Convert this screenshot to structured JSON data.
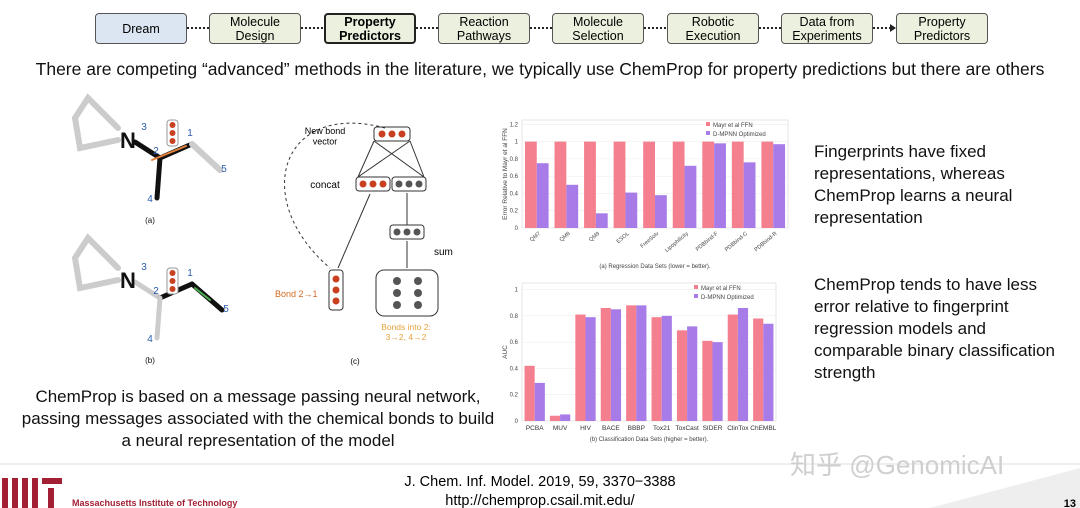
{
  "workflow": [
    "Dream",
    "Molecule\nDesign",
    "Property\nPredictors",
    "Reaction\nPathways",
    "Molecule\nSelection",
    "Robotic\nExecution",
    "Data from\nExperiments",
    "Property\nPredictors"
  ],
  "subtitle": "There are competing “advanced” methods in the literature, we typically use ChemProp for property predictions but there are others",
  "molecule_labels": {
    "a": [
      "N",
      "3",
      "2",
      "1",
      "4",
      "5",
      "(a)"
    ],
    "b": [
      "N",
      "3",
      "2",
      "1",
      "4",
      "5",
      "(b)"
    ]
  },
  "network_labels": {
    "new_bond": "New bond\nvector",
    "concat": "concat",
    "sum": "sum",
    "bond": "Bond 2→1",
    "bonds_into": "Bonds into 2:\n3→2, 4→2",
    "panel": "(c)"
  },
  "left_caption": "ChemProp is based on a message passing neural network, passing messages associated with the chemical bonds to build a neural representation of the model",
  "right_text_1": "Fingerprints have fixed representations, whereas ChemProp learns a neural representation",
  "right_text_2": "ChemProp tends to have less error relative to fingerprint regression models and comparable binary classification strength",
  "charts": [
    {
      "type": "bar",
      "ylabel": "Error Relative to Mayr et al FFN",
      "caption": "(a) Regression Data Sets (lower = better).",
      "categories": [
        "QM7",
        "QM8",
        "QM9",
        "ESOL",
        "FreeSolv",
        "Lipophilicity",
        "PDBbind-F",
        "PDBbind-C",
        "PDBbind-R"
      ],
      "series": [
        {
          "name": "Mayr et al FFN",
          "color": "#f4808f",
          "values": [
            1,
            1,
            1,
            1,
            1,
            1,
            1,
            1,
            1
          ]
        },
        {
          "name": "D-MPNN Optimized",
          "color": "#a77ce8",
          "values": [
            0.75,
            0.5,
            0.17,
            0.41,
            0.38,
            0.72,
            0.98,
            0.76,
            0.97
          ]
        }
      ],
      "ylim": [
        0,
        1.25
      ],
      "yticks": [
        0,
        0.2,
        0.4,
        0.6,
        0.8,
        1,
        1.2
      ],
      "rotate_labels": true
    },
    {
      "type": "bar",
      "ylabel": "AUC",
      "caption": "(b) Classification Data Sets (higher = better).",
      "categories": [
        "PCBA",
        "MUV",
        "HIV",
        "BACE",
        "BBBP",
        "Tox21",
        "ToxCast",
        "SIDER",
        "ClinTox",
        "ChEMBL"
      ],
      "series": [
        {
          "name": "Mayr et al FFN",
          "color": "#f4808f",
          "values": [
            0.42,
            0.04,
            0.81,
            0.86,
            0.88,
            0.79,
            0.69,
            0.61,
            0.81,
            0.78
          ]
        },
        {
          "name": "D-MPNN Optimized",
          "color": "#a77ce8",
          "values": [
            0.29,
            0.05,
            0.79,
            0.85,
            0.88,
            0.8,
            0.72,
            0.6,
            0.86,
            0.74
          ]
        }
      ],
      "ylim": [
        0,
        1.05
      ],
      "yticks": [
        0,
        0.2,
        0.4,
        0.6,
        0.8,
        1
      ],
      "rotate_labels": false
    }
  ],
  "citation": "J. Chem. Inf. Model. 2019, 59, 3370−3388",
  "url": "http://chemprop.csail.mit.edu/",
  "institution": "Massachusetts Institute of Technology",
  "watermark": "知乎 @GenomicAI",
  "page_number": "13"
}
